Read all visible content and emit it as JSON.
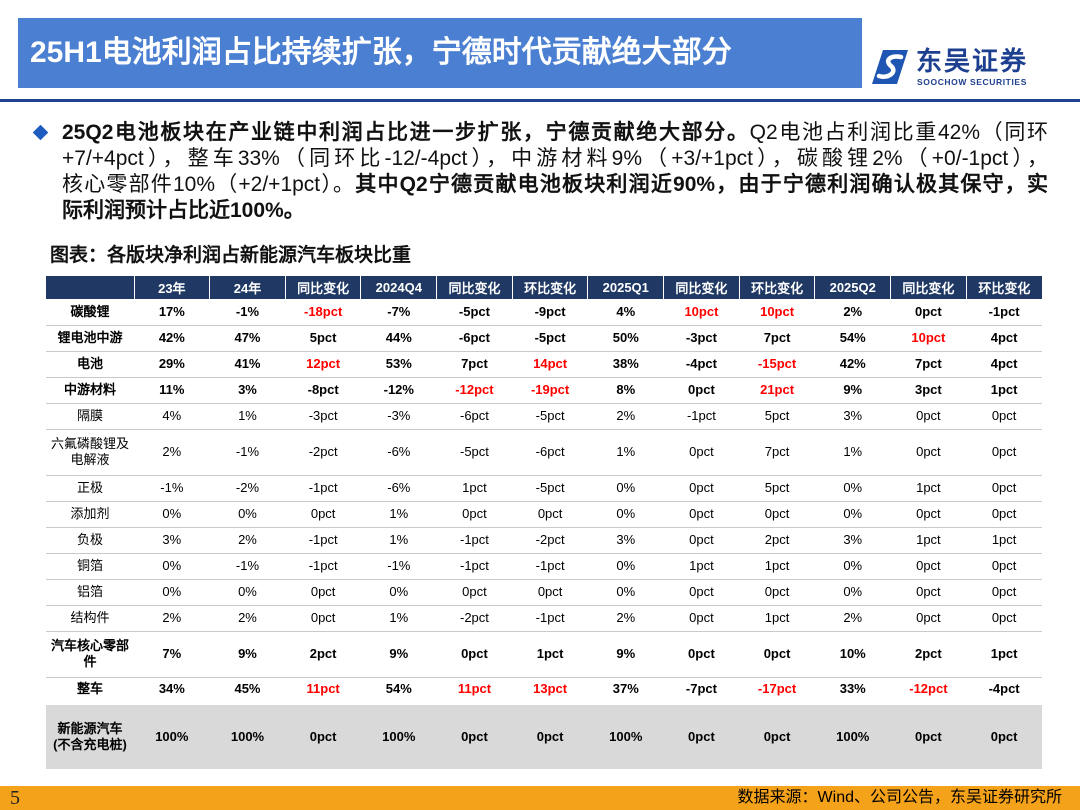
{
  "header": {
    "title": "25H1电池利润占比持续扩张，宁德时代贡献绝大部分"
  },
  "logo": {
    "name_cn": "东吴证券",
    "name_en": "SOOCHOW SECURITIES",
    "icon": "soochow-logo-icon"
  },
  "summary": {
    "icon": "diamond-bullet-icon",
    "line1_bold": "25Q2电池板块在产业链中利润占比进一步扩张，宁德贡献绝大部分。",
    "line1_normal": "Q2电池占利润比重42%（同环",
    "line2_normal": "+7/+4pct），整车33%（同环比-12/-4pct），中游材料9%（+3/+1pct），碳酸锂2%（+0/-1pct），",
    "line3_normal": "核心零部件10%（+2/+1pct）。",
    "line3_bold": "其中Q2宁德贡献电池板块利润近90%，由于宁德利润确认极其保守，实",
    "line4_bold": "际利润预计占比近100%。"
  },
  "figure": {
    "title": "图表：各版块净利润占新能源汽车板块比重"
  },
  "table": {
    "columns": [
      "",
      "23年",
      "24年",
      "同比变化",
      "2024Q4",
      "同比变化",
      "环比变化",
      "2025Q1",
      "同比变化",
      "环比变化",
      "2025Q2",
      "同比变化",
      "环比变化"
    ],
    "rows": [
      {
        "label": "碳酸锂",
        "emphasis": true,
        "values": [
          "17%",
          "-1%",
          "-18pct",
          "-7%",
          "-5pct",
          "-9pct",
          "4%",
          "10pct",
          "10pct",
          "2%",
          "0pct",
          "-1pct"
        ],
        "highlight": [
          2,
          7,
          8
        ]
      },
      {
        "label": "锂电池中游",
        "emphasis": true,
        "values": [
          "42%",
          "47%",
          "5pct",
          "44%",
          "-6pct",
          "-5pct",
          "50%",
          "-3pct",
          "7pct",
          "54%",
          "10pct",
          "4pct"
        ],
        "highlight": [
          10
        ]
      },
      {
        "label": "电池",
        "emphasis": true,
        "values": [
          "29%",
          "41%",
          "12pct",
          "53%",
          "7pct",
          "14pct",
          "38%",
          "-4pct",
          "-15pct",
          "42%",
          "7pct",
          "4pct"
        ],
        "highlight": [
          2,
          5,
          8
        ]
      },
      {
        "label": "中游材料",
        "emphasis": true,
        "values": [
          "11%",
          "3%",
          "-8pct",
          "-12%",
          "-12pct",
          "-19pct",
          "8%",
          "0pct",
          "21pct",
          "9%",
          "3pct",
          "1pct"
        ],
        "highlight": [
          4,
          5,
          8
        ]
      },
      {
        "label": "隔膜",
        "emphasis": false,
        "values": [
          "4%",
          "1%",
          "-3pct",
          "-3%",
          "-6pct",
          "-5pct",
          "2%",
          "-1pct",
          "5pct",
          "3%",
          "0pct",
          "0pct"
        ],
        "highlight": []
      },
      {
        "label": "六氟磷酸锂及电解液",
        "emphasis": false,
        "values": [
          "2%",
          "-1%",
          "-2pct",
          "-6%",
          "-5pct",
          "-6pct",
          "1%",
          "0pct",
          "7pct",
          "1%",
          "0pct",
          "0pct"
        ],
        "highlight": []
      },
      {
        "label": "正极",
        "emphasis": false,
        "values": [
          "-1%",
          "-2%",
          "-1pct",
          "-6%",
          "1pct",
          "-5pct",
          "0%",
          "0pct",
          "5pct",
          "0%",
          "1pct",
          "0pct"
        ],
        "highlight": []
      },
      {
        "label": "添加剂",
        "emphasis": false,
        "values": [
          "0%",
          "0%",
          "0pct",
          "1%",
          "0pct",
          "0pct",
          "0%",
          "0pct",
          "0pct",
          "0%",
          "0pct",
          "0pct"
        ],
        "highlight": []
      },
      {
        "label": "负极",
        "emphasis": false,
        "values": [
          "3%",
          "2%",
          "-1pct",
          "1%",
          "-1pct",
          "-2pct",
          "3%",
          "0pct",
          "2pct",
          "3%",
          "1pct",
          "1pct"
        ],
        "highlight": []
      },
      {
        "label": "铜箔",
        "emphasis": false,
        "values": [
          "0%",
          "-1%",
          "-1pct",
          "-1%",
          "-1pct",
          "-1pct",
          "0%",
          "1pct",
          "1pct",
          "0%",
          "0pct",
          "0pct"
        ],
        "highlight": []
      },
      {
        "label": "铝箔",
        "emphasis": false,
        "values": [
          "0%",
          "0%",
          "0pct",
          "0%",
          "0pct",
          "0pct",
          "0%",
          "0pct",
          "0pct",
          "0%",
          "0pct",
          "0pct"
        ],
        "highlight": []
      },
      {
        "label": "结构件",
        "emphasis": false,
        "values": [
          "2%",
          "2%",
          "0pct",
          "1%",
          "-2pct",
          "-1pct",
          "2%",
          "0pct",
          "1pct",
          "2%",
          "0pct",
          "0pct"
        ],
        "highlight": []
      },
      {
        "label": "汽车核心零部件",
        "emphasis": true,
        "values": [
          "7%",
          "9%",
          "2pct",
          "9%",
          "0pct",
          "1pct",
          "9%",
          "0pct",
          "0pct",
          "10%",
          "2pct",
          "1pct"
        ],
        "highlight": []
      },
      {
        "label": "整车",
        "emphasis": true,
        "values": [
          "34%",
          "45%",
          "11pct",
          "54%",
          "11pct",
          "13pct",
          "37%",
          "-7pct",
          "-17pct",
          "33%",
          "-12pct",
          "-4pct"
        ],
        "highlight": [
          2,
          4,
          5,
          8,
          10
        ]
      },
      {
        "label": "新能源汽车\n(不含充电桩)",
        "emphasis": true,
        "values": [
          "100%",
          "100%",
          "0pct",
          "100%",
          "0pct",
          "0pct",
          "100%",
          "0pct",
          "0pct",
          "100%",
          "0pct",
          "0pct"
        ],
        "highlight": []
      }
    ]
  },
  "footer": {
    "page": "5",
    "source": "数据来源：Wind、公司公告，东吴证券研究所"
  },
  "colors": {
    "title_bar": "#4a7fd2",
    "rule": "#1f4192",
    "table_header": "#1f3864",
    "highlight": "#ff0000",
    "total_row": "#d9d9d9",
    "footer": "#f5a21b",
    "accent": "#1f5cbf",
    "brand": "#1d3f8f"
  }
}
